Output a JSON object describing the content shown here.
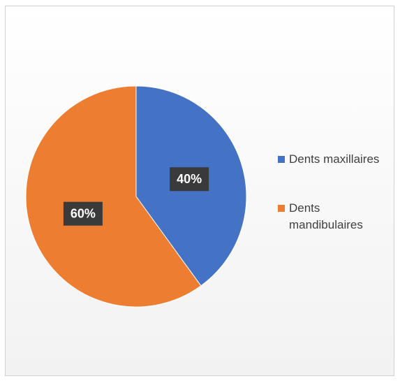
{
  "chart_data": {
    "type": "pie",
    "categories": [
      "Dents maxillaires",
      "Dents mandibulaires"
    ],
    "values": [
      40,
      60
    ],
    "value_labels": [
      "40%",
      "60%"
    ],
    "colors": [
      "#4472c4",
      "#ed7d31"
    ],
    "legend": "right"
  }
}
